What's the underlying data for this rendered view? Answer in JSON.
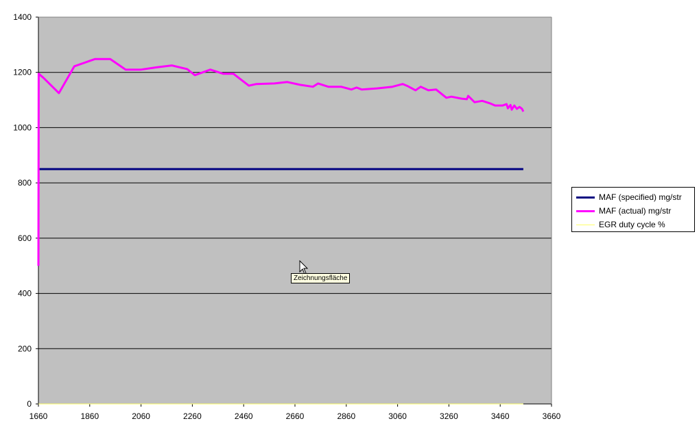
{
  "chart_data": {
    "type": "line",
    "xlim": [
      1660,
      3660
    ],
    "ylim": [
      0,
      1400
    ],
    "x_ticks": [
      1660,
      1860,
      2060,
      2260,
      2460,
      2660,
      2860,
      3060,
      3260,
      3460,
      3660
    ],
    "y_ticks": [
      0,
      200,
      400,
      600,
      800,
      1000,
      1200,
      1400
    ],
    "grid": "horizontal",
    "background": "#c0c0c0",
    "legend_position": "right",
    "series": [
      {
        "name": "MAF (specified) mg/str",
        "color": "#000080",
        "points": [
          [
            1660,
            850
          ],
          [
            3550,
            850
          ]
        ]
      },
      {
        "name": "MAF (actual) mg/str",
        "color": "#ff00ff",
        "points": [
          [
            1660,
            500
          ],
          [
            1661,
            1195
          ],
          [
            1680,
            1180
          ],
          [
            1740,
            1125
          ],
          [
            1800,
            1222
          ],
          [
            1880,
            1248
          ],
          [
            1940,
            1248
          ],
          [
            2000,
            1210
          ],
          [
            2060,
            1210
          ],
          [
            2120,
            1218
          ],
          [
            2180,
            1225
          ],
          [
            2240,
            1212
          ],
          [
            2270,
            1190
          ],
          [
            2330,
            1210
          ],
          [
            2380,
            1195
          ],
          [
            2420,
            1195
          ],
          [
            2480,
            1152
          ],
          [
            2510,
            1158
          ],
          [
            2580,
            1160
          ],
          [
            2630,
            1165
          ],
          [
            2680,
            1155
          ],
          [
            2730,
            1148
          ],
          [
            2750,
            1160
          ],
          [
            2790,
            1148
          ],
          [
            2840,
            1148
          ],
          [
            2880,
            1138
          ],
          [
            2900,
            1145
          ],
          [
            2920,
            1138
          ],
          [
            2980,
            1142
          ],
          [
            3040,
            1148
          ],
          [
            3080,
            1158
          ],
          [
            3100,
            1150
          ],
          [
            3130,
            1135
          ],
          [
            3150,
            1148
          ],
          [
            3180,
            1135
          ],
          [
            3210,
            1138
          ],
          [
            3250,
            1108
          ],
          [
            3270,
            1112
          ],
          [
            3310,
            1105
          ],
          [
            3330,
            1103
          ],
          [
            3335,
            1115
          ],
          [
            3360,
            1092
          ],
          [
            3390,
            1097
          ],
          [
            3420,
            1088
          ],
          [
            3440,
            1080
          ],
          [
            3470,
            1080
          ],
          [
            3485,
            1085
          ],
          [
            3490,
            1070
          ],
          [
            3500,
            1082
          ],
          [
            3505,
            1065
          ],
          [
            3515,
            1080
          ],
          [
            3525,
            1068
          ],
          [
            3535,
            1075
          ],
          [
            3545,
            1068
          ],
          [
            3550,
            1058
          ]
        ]
      },
      {
        "name": "EGR duty cycle %",
        "color": "#ffff66",
        "points": [
          [
            1660,
            0
          ],
          [
            3550,
            0
          ]
        ]
      }
    ]
  },
  "tooltip": {
    "text": "Zeichnungsfläche"
  }
}
